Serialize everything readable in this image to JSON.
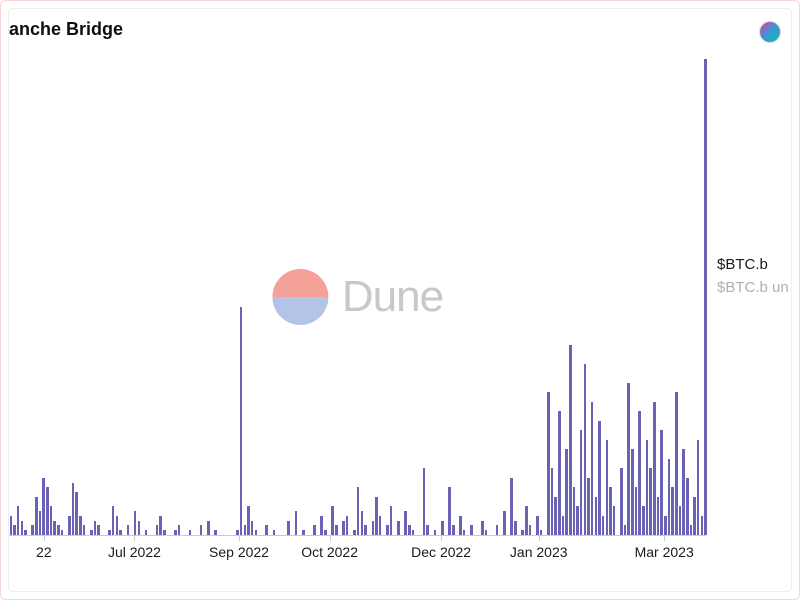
{
  "title": "anche Bridge",
  "avatar_gradient": [
    "#e84393",
    "#3498db",
    "#1abc9c"
  ],
  "watermark": {
    "text": "Dune",
    "text_color": "#c8c8c8",
    "circle_top_color": "#f4a19a",
    "circle_bottom_color": "#b3c4e6"
  },
  "legend": [
    {
      "label": "$BTC.b",
      "color": "#1a1a1a"
    },
    {
      "label": "$BTC.b un",
      "color": "#b0b0b0"
    }
  ],
  "chart": {
    "type": "bar",
    "bar_color": "#6a62b5",
    "ylim": [
      0,
      100
    ],
    "background_color": "#ffffff",
    "axis_color": "#cccccc",
    "label_fontsize": 14,
    "label_color": "#1a1a1a",
    "x_labels": [
      {
        "pos_pct": 5,
        "text": "22"
      },
      {
        "pos_pct": 18,
        "text": "Jul 2022"
      },
      {
        "pos_pct": 33,
        "text": "Sep 2022"
      },
      {
        "pos_pct": 46,
        "text": "Oct 2022"
      },
      {
        "pos_pct": 62,
        "text": "Dec 2022"
      },
      {
        "pos_pct": 76,
        "text": "Jan 2023"
      },
      {
        "pos_pct": 94,
        "text": "Mar 2023"
      }
    ],
    "values": [
      4,
      2,
      6,
      3,
      1,
      0,
      2,
      8,
      5,
      12,
      10,
      6,
      3,
      2,
      1,
      0,
      4,
      11,
      9,
      4,
      2,
      0,
      1,
      3,
      2,
      0,
      0,
      1,
      6,
      4,
      1,
      0,
      2,
      0,
      5,
      3,
      0,
      1,
      0,
      0,
      2,
      4,
      1,
      0,
      0,
      1,
      2,
      0,
      0,
      1,
      0,
      0,
      2,
      0,
      3,
      0,
      1,
      0,
      0,
      0,
      0,
      0,
      1,
      48,
      2,
      6,
      3,
      1,
      0,
      0,
      2,
      0,
      1,
      0,
      0,
      0,
      3,
      0,
      5,
      0,
      1,
      0,
      0,
      2,
      0,
      4,
      1,
      0,
      6,
      2,
      0,
      3,
      4,
      0,
      1,
      10,
      5,
      2,
      0,
      3,
      8,
      4,
      0,
      2,
      6,
      0,
      3,
      0,
      5,
      2,
      1,
      0,
      0,
      14,
      2,
      0,
      1,
      0,
      3,
      0,
      10,
      2,
      0,
      4,
      1,
      0,
      2,
      0,
      0,
      3,
      1,
      0,
      0,
      2,
      0,
      5,
      0,
      12,
      3,
      0,
      1,
      6,
      2,
      0,
      4,
      1,
      0,
      30,
      14,
      8,
      26,
      4,
      18,
      40,
      10,
      6,
      22,
      36,
      12,
      28,
      8,
      24,
      4,
      20,
      10,
      6,
      0,
      14,
      2,
      32,
      18,
      10,
      26,
      6,
      20,
      14,
      28,
      8,
      22,
      4,
      16,
      10,
      30,
      6,
      18,
      12,
      2,
      8,
      20,
      4,
      100
    ]
  }
}
